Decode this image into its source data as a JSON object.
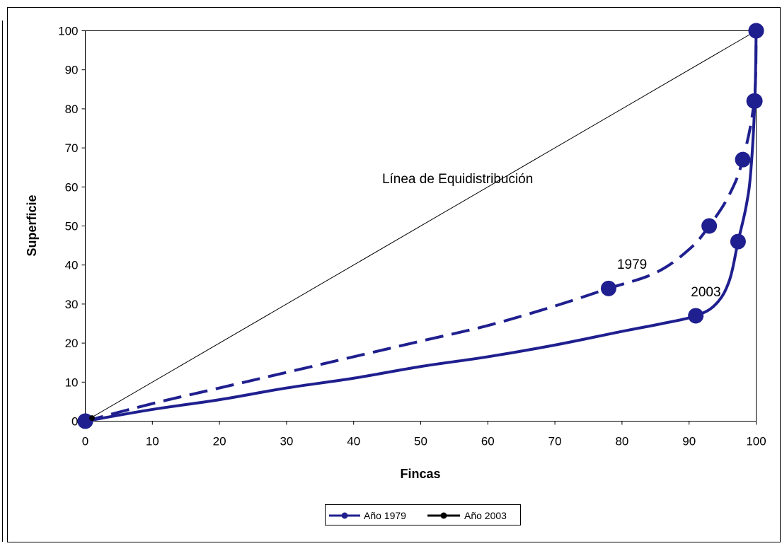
{
  "chart_data": {
    "type": "line",
    "title": "",
    "xlabel": "Fincas",
    "ylabel": "Superficie",
    "xlim": [
      0,
      100
    ],
    "ylim": [
      0,
      100
    ],
    "xticks": [
      0,
      10,
      20,
      30,
      40,
      50,
      60,
      70,
      80,
      90,
      100
    ],
    "yticks": [
      0,
      10,
      20,
      30,
      40,
      50,
      60,
      70,
      80,
      90,
      100
    ],
    "grid": false,
    "legend_position": "bottom",
    "annotations": [
      {
        "text": "Línea de Equidistribución",
        "x": 55.5,
        "y": 61
      },
      {
        "text": "1979",
        "x": 81.5,
        "y": 39
      },
      {
        "text": "2003",
        "x": 92.5,
        "y": 32
      }
    ],
    "equidistribution_line": {
      "x": [
        0,
        100
      ],
      "y": [
        0,
        100
      ],
      "color": "#000000"
    },
    "series": [
      {
        "name": "Año 1979",
        "legend_color": "#1f1f8f",
        "legend_marker_color": "#1f1f8f",
        "curve_style": "solid",
        "curve_color": "#1f1f8f",
        "points": [
          {
            "x": 0,
            "y": 0,
            "marker": true
          },
          {
            "x": 10,
            "y": 3,
            "marker": false
          },
          {
            "x": 20,
            "y": 5.5,
            "marker": false
          },
          {
            "x": 30,
            "y": 8.5,
            "marker": false
          },
          {
            "x": 40,
            "y": 11,
            "marker": false
          },
          {
            "x": 50,
            "y": 14,
            "marker": false
          },
          {
            "x": 60,
            "y": 16.5,
            "marker": false
          },
          {
            "x": 70,
            "y": 19.5,
            "marker": false
          },
          {
            "x": 80,
            "y": 23,
            "marker": false
          },
          {
            "x": 86,
            "y": 25,
            "marker": false
          },
          {
            "x": 91,
            "y": 27,
            "marker": true
          },
          {
            "x": 94,
            "y": 30,
            "marker": false
          },
          {
            "x": 96,
            "y": 36,
            "marker": false
          },
          {
            "x": 97.3,
            "y": 46,
            "marker": true
          },
          {
            "x": 98.5,
            "y": 55,
            "marker": false
          },
          {
            "x": 99.2,
            "y": 64,
            "marker": false
          },
          {
            "x": 99.8,
            "y": 82,
            "marker": true
          },
          {
            "x": 100,
            "y": 100,
            "marker": true
          }
        ]
      },
      {
        "name": "Año 2003",
        "legend_color": "#000000",
        "legend_marker_color": "#000000",
        "curve_style": "dashed",
        "curve_color": "#1f1f8f",
        "points": [
          {
            "x": 0,
            "y": 0,
            "marker": true
          },
          {
            "x": 10,
            "y": 4.5,
            "marker": false
          },
          {
            "x": 20,
            "y": 8.5,
            "marker": false
          },
          {
            "x": 30,
            "y": 12.5,
            "marker": false
          },
          {
            "x": 40,
            "y": 16.5,
            "marker": false
          },
          {
            "x": 50,
            "y": 20.5,
            "marker": false
          },
          {
            "x": 60,
            "y": 24.5,
            "marker": false
          },
          {
            "x": 70,
            "y": 29.5,
            "marker": false
          },
          {
            "x": 78,
            "y": 34,
            "marker": true
          },
          {
            "x": 85,
            "y": 38,
            "marker": false
          },
          {
            "x": 90,
            "y": 44,
            "marker": false
          },
          {
            "x": 93,
            "y": 50,
            "marker": true
          },
          {
            "x": 96,
            "y": 58,
            "marker": false
          },
          {
            "x": 98,
            "y": 67,
            "marker": true
          },
          {
            "x": 99.7,
            "y": 82,
            "marker": true
          },
          {
            "x": 100,
            "y": 100,
            "marker": true
          }
        ]
      }
    ]
  }
}
